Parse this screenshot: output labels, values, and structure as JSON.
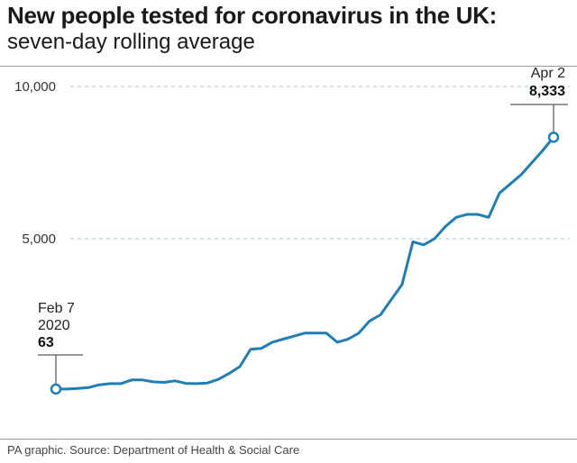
{
  "header": {
    "title": "New people tested for coronavirus in the UK:",
    "subtitle": "seven-day rolling average"
  },
  "footer": {
    "source": "PA graphic. Source: Department of Health & Social Care"
  },
  "colors": {
    "line": "#1f7fb5",
    "grid": "#a9c4d6",
    "text": "#222222"
  },
  "chart_data": {
    "type": "line",
    "title": "New people tested for coronavirus in the UK:",
    "subtitle": "seven-day rolling average",
    "ylim": [
      0,
      10000
    ],
    "yticks": [
      5000,
      10000
    ],
    "ytick_labels": [
      "5,000",
      "10,000"
    ],
    "grid": "horizontal dashed at tick values",
    "x_start": "Feb 7 2020",
    "x_end": "Apr 2",
    "series": [
      {
        "values": [
          63,
          63,
          80,
          110,
          200,
          240,
          240,
          360,
          360,
          300,
          280,
          330,
          250,
          240,
          260,
          380,
          570,
          800,
          1370,
          1400,
          1600,
          1700,
          1800,
          1900,
          1900,
          1900,
          1600,
          1700,
          1900,
          2300,
          2500,
          3000,
          3500,
          4900,
          4800,
          5000,
          5400,
          5700,
          5800,
          5800,
          5700,
          6500,
          6800,
          7100,
          7500,
          7900,
          8333
        ]
      }
    ],
    "annotations": [
      {
        "date_line1": "Feb 7",
        "date_line2": "2020",
        "value": "63"
      },
      {
        "date_line1": "Apr 2",
        "value": "8,333"
      }
    ]
  }
}
